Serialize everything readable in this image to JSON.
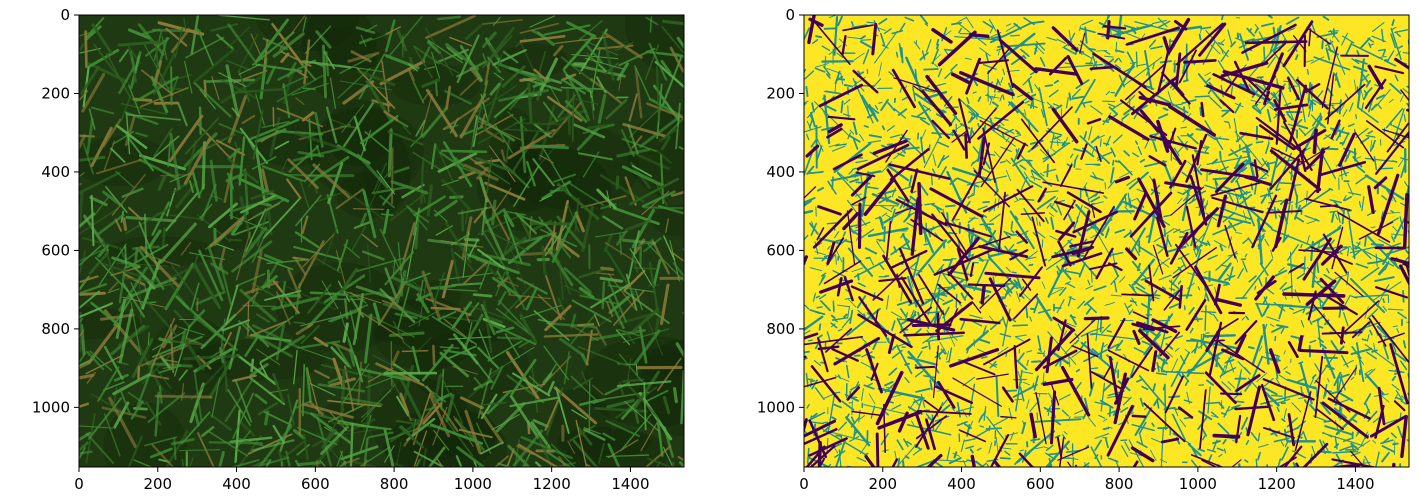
{
  "chart_data": [
    {
      "type": "heatmap",
      "content": "RGB photograph of a grass lawn",
      "image_width": 1536,
      "image_height": 1152,
      "xlim": [
        0,
        1536
      ],
      "ylim": [
        1152,
        0
      ],
      "xticks": [
        0,
        200,
        400,
        600,
        800,
        1000,
        1200,
        1400
      ],
      "yticks": [
        0,
        200,
        400,
        600,
        800,
        1000
      ],
      "xtick_labels": [
        "0",
        "200",
        "400",
        "600",
        "800",
        "1000",
        "1200",
        "1400"
      ],
      "ytick_labels": [
        "0",
        "200",
        "400",
        "600",
        "800",
        "1000"
      ],
      "title": "",
      "xlabel": "",
      "ylabel": "",
      "colors": {
        "base": "#1f3a12",
        "blade_dark": "#2d5e1f",
        "blade_mid": "#3f8a34",
        "blade_light": "#5aa84a",
        "blade_dry": "#8a7a3a"
      }
    },
    {
      "type": "heatmap",
      "content": "Thresholded segmentation mask of the grass image (viridis colormap, 3 levels)",
      "image_width": 1536,
      "image_height": 1152,
      "xlim": [
        0,
        1536
      ],
      "ylim": [
        1152,
        0
      ],
      "xticks": [
        0,
        200,
        400,
        600,
        800,
        1000,
        1200,
        1400
      ],
      "yticks": [
        0,
        200,
        400,
        600,
        800,
        1000
      ],
      "xtick_labels": [
        "0",
        "200",
        "400",
        "600",
        "800",
        "1000",
        "1200",
        "1400"
      ],
      "ytick_labels": [
        "0",
        "200",
        "400",
        "600",
        "800",
        "1000"
      ],
      "title": "",
      "xlabel": "",
      "ylabel": "",
      "levels": [
        0,
        1,
        2
      ],
      "colors": {
        "level_0": "#440154",
        "level_1": "#21918c",
        "level_2": "#fde725"
      }
    }
  ]
}
